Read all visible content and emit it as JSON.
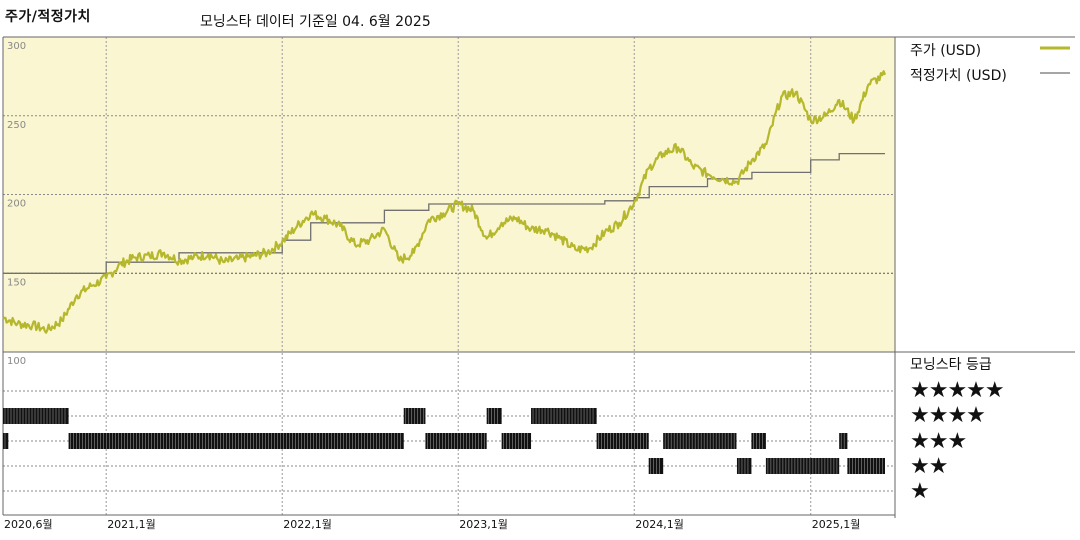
{
  "header": {
    "title": "주가/적정가치",
    "subtitle": "모닝스타 데이터 기준일 04. 6월 2025"
  },
  "legend": {
    "price_label": "주가 (USD)",
    "fair_label": "적정가치 (USD)",
    "rating_title": "모닝스타 등급",
    "rating_rows": [
      "★★★★★",
      "★★★★",
      "★★★",
      "★★",
      "★"
    ]
  },
  "colors": {
    "price": "#b5b82c",
    "fair": "#707070",
    "panel_bg": "#fbf6d2",
    "rating_bar": "#111111"
  },
  "chart_data": {
    "type": "line",
    "title": "주가/적정가치",
    "subtitle": "모닝스타 데이터 기준일 04. 6월 2025",
    "x_range": [
      "2020-06-01",
      "2025-06-04"
    ],
    "x_ticks": [
      {
        "date": "2020-06-01",
        "label": "2020,6월"
      },
      {
        "date": "2021-01-01",
        "label": "2021,1월"
      },
      {
        "date": "2022-01-01",
        "label": "2022,1월"
      },
      {
        "date": "2023-01-01",
        "label": "2023,1월"
      },
      {
        "date": "2024-01-01",
        "label": "2024,1월"
      },
      {
        "date": "2025-01-01",
        "label": "2025,1월"
      }
    ],
    "ylim": [
      100,
      300
    ],
    "y_ticks": [
      300,
      250,
      200,
      150,
      100
    ],
    "grid": true,
    "legend_position": "right",
    "series": [
      {
        "name": "주가 (USD)",
        "points": [
          [
            "2020-06-01",
            122
          ],
          [
            "2020-07-01",
            118
          ],
          [
            "2020-08-01",
            117
          ],
          [
            "2020-09-01",
            114
          ],
          [
            "2020-10-01",
            120
          ],
          [
            "2020-11-01",
            136
          ],
          [
            "2020-12-01",
            142
          ],
          [
            "2021-01-01",
            147
          ],
          [
            "2021-02-01",
            156
          ],
          [
            "2021-03-01",
            160
          ],
          [
            "2021-04-01",
            161
          ],
          [
            "2021-05-01",
            163
          ],
          [
            "2021-06-01",
            158
          ],
          [
            "2021-07-01",
            160
          ],
          [
            "2021-08-01",
            162
          ],
          [
            "2021-09-01",
            157
          ],
          [
            "2021-10-01",
            159
          ],
          [
            "2021-11-01",
            161
          ],
          [
            "2021-12-01",
            163
          ],
          [
            "2022-01-01",
            170
          ],
          [
            "2022-02-01",
            180
          ],
          [
            "2022-03-01",
            188
          ],
          [
            "2022-04-01",
            185
          ],
          [
            "2022-05-01",
            180
          ],
          [
            "2022-06-01",
            168
          ],
          [
            "2022-07-01",
            171
          ],
          [
            "2022-08-01",
            178
          ],
          [
            "2022-09-01",
            158
          ],
          [
            "2022-10-01",
            163
          ],
          [
            "2022-11-01",
            184
          ],
          [
            "2022-12-01",
            188
          ],
          [
            "2023-01-01",
            194
          ],
          [
            "2023-02-01",
            190
          ],
          [
            "2023-03-01",
            172
          ],
          [
            "2023-04-01",
            182
          ],
          [
            "2023-05-01",
            185
          ],
          [
            "2023-06-01",
            178
          ],
          [
            "2023-07-01",
            178
          ],
          [
            "2023-08-01",
            172
          ],
          [
            "2023-09-01",
            165
          ],
          [
            "2023-10-01",
            166
          ],
          [
            "2023-11-01",
            176
          ],
          [
            "2023-12-01",
            182
          ],
          [
            "2024-01-01",
            195
          ],
          [
            "2024-02-01",
            217
          ],
          [
            "2024-03-01",
            226
          ],
          [
            "2024-04-01",
            230
          ],
          [
            "2024-05-01",
            218
          ],
          [
            "2024-06-01",
            213
          ],
          [
            "2024-07-01",
            210
          ],
          [
            "2024-08-01",
            208
          ],
          [
            "2024-09-01",
            222
          ],
          [
            "2024-10-01",
            232
          ],
          [
            "2024-11-01",
            262
          ],
          [
            "2024-12-01",
            265
          ],
          [
            "2025-01-01",
            247
          ],
          [
            "2025-02-01",
            250
          ],
          [
            "2025-03-01",
            260
          ],
          [
            "2025-04-01",
            247
          ],
          [
            "2025-05-01",
            270
          ],
          [
            "2025-06-04",
            276
          ]
        ]
      },
      {
        "name": "적정가치 (USD)",
        "points": [
          [
            "2020-06-01",
            150
          ],
          [
            "2021-01-01",
            150
          ],
          [
            "2021-01-01",
            157
          ],
          [
            "2021-06-01",
            157
          ],
          [
            "2021-06-01",
            163
          ],
          [
            "2022-01-01",
            163
          ],
          [
            "2022-01-01",
            171
          ],
          [
            "2022-03-01",
            171
          ],
          [
            "2022-03-01",
            182
          ],
          [
            "2022-08-01",
            182
          ],
          [
            "2022-08-01",
            190
          ],
          [
            "2022-11-01",
            190
          ],
          [
            "2022-11-01",
            194
          ],
          [
            "2023-11-01",
            194
          ],
          [
            "2023-11-01",
            196
          ],
          [
            "2024-01-01",
            196
          ],
          [
            "2024-01-01",
            198
          ],
          [
            "2024-02-01",
            198
          ],
          [
            "2024-02-01",
            205
          ],
          [
            "2024-06-01",
            205
          ],
          [
            "2024-06-01",
            210
          ],
          [
            "2024-09-01",
            210
          ],
          [
            "2024-09-01",
            214
          ],
          [
            "2025-01-01",
            214
          ],
          [
            "2025-01-01",
            222
          ],
          [
            "2025-03-01",
            222
          ],
          [
            "2025-03-01",
            226
          ],
          [
            "2025-06-04",
            226
          ]
        ]
      }
    ],
    "ratings": [
      {
        "stars": 5,
        "periods": []
      },
      {
        "stars": 4,
        "periods": [
          [
            "2020-06-01",
            "2020-10-15"
          ],
          [
            "2022-09-10",
            "2022-10-25"
          ],
          [
            "2023-03-01",
            "2023-04-01"
          ],
          [
            "2023-06-01",
            "2023-10-15"
          ]
        ]
      },
      {
        "stars": 3,
        "periods": [
          [
            "2020-06-01",
            "2020-06-12"
          ],
          [
            "2020-10-15",
            "2022-09-10"
          ],
          [
            "2022-10-25",
            "2023-03-01"
          ],
          [
            "2023-04-01",
            "2023-06-01"
          ],
          [
            "2023-10-15",
            "2024-01-31"
          ],
          [
            "2024-03-01",
            "2024-07-31"
          ],
          [
            "2024-08-31",
            "2024-09-30"
          ],
          [
            "2025-03-01",
            "2025-03-18"
          ]
        ]
      },
      {
        "stars": 2,
        "periods": [
          [
            "2024-01-31",
            "2024-03-01"
          ],
          [
            "2024-08-01",
            "2024-08-31"
          ],
          [
            "2024-09-30",
            "2025-03-01"
          ],
          [
            "2025-03-18",
            "2025-06-04"
          ]
        ]
      },
      {
        "stars": 1,
        "periods": []
      }
    ]
  }
}
